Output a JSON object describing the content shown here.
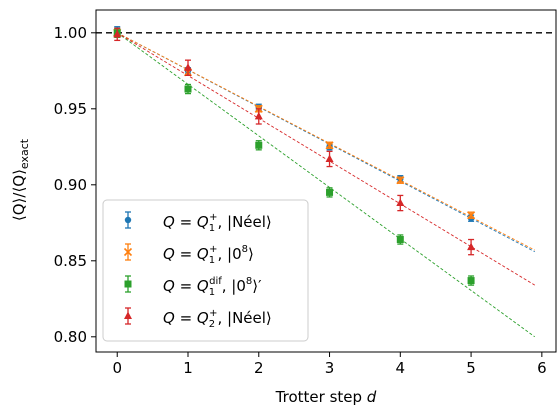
{
  "chart_data": {
    "type": "scatter",
    "xlabel": "Trotter step d",
    "ylabel": "⟨Q⟩/⟨Q⟩exact",
    "xlim": [
      -0.3,
      6.2
    ],
    "ylim": [
      0.79,
      1.015
    ],
    "xticks": [
      0,
      1,
      2,
      3,
      4,
      5,
      6
    ],
    "yticks": [
      0.8,
      0.85,
      0.9,
      0.95,
      1.0
    ],
    "ytick_labels": [
      "0.80",
      "0.85",
      "0.90",
      "0.95",
      "1.00"
    ],
    "reference_line": {
      "y": 1.0,
      "style": "dashed",
      "color": "#000000"
    },
    "legend_position": "lower-left",
    "grid": false,
    "series": [
      {
        "name": "Q = Q1+ , |Néel⟩",
        "color": "#1f77b4",
        "marker": "circle",
        "x": [
          0,
          1,
          2,
          3,
          4,
          5
        ],
        "y": [
          1.001,
          0.975,
          0.951,
          0.925,
          0.904,
          0.878
        ],
        "err": [
          0.003,
          0.002,
          0.002,
          0.002,
          0.002,
          0.002
        ],
        "fit": [
          [
            0,
            1.0
          ],
          [
            5.9,
            0.856
          ]
        ]
      },
      {
        "name": "Q = Q1+ , |0⁸⟩",
        "color": "#ff7f0e",
        "marker": "x",
        "x": [
          0,
          1,
          2,
          3,
          4,
          5
        ],
        "y": [
          1.0,
          0.974,
          0.95,
          0.926,
          0.903,
          0.88
        ],
        "err": [
          0.002,
          0.002,
          0.002,
          0.002,
          0.002,
          0.002
        ],
        "fit": [
          [
            0,
            1.0
          ],
          [
            5.9,
            0.857
          ]
        ]
      },
      {
        "name": "Q = Q1dif, |0⁸⟩′",
        "color": "#2ca02c",
        "marker": "square",
        "x": [
          0,
          1,
          2,
          3,
          4,
          5
        ],
        "y": [
          1.0,
          0.963,
          0.926,
          0.895,
          0.864,
          0.837
        ],
        "err": [
          0.003,
          0.003,
          0.003,
          0.003,
          0.003,
          0.003
        ],
        "fit": [
          [
            0,
            1.0
          ],
          [
            5.9,
            0.8
          ]
        ]
      },
      {
        "name": "Q = Q2+ , |Néel⟩",
        "color": "#d62728",
        "marker": "triangle",
        "x": [
          0,
          1,
          2,
          3,
          4,
          5
        ],
        "y": [
          0.999,
          0.977,
          0.945,
          0.917,
          0.888,
          0.859
        ],
        "err": [
          0.004,
          0.005,
          0.005,
          0.005,
          0.005,
          0.005
        ],
        "fit": [
          [
            0,
            1.0
          ],
          [
            5.9,
            0.834
          ]
        ]
      }
    ]
  },
  "legend": [
    {
      "q": "Q = Q",
      "sub": "1",
      "sup": "+",
      "state": ", |Néel⟩"
    },
    {
      "q": "Q = Q",
      "sub": "1",
      "sup": "+",
      "state": ", |0",
      "state_sup": "8",
      "state_end": "⟩"
    },
    {
      "q": "Q = Q",
      "sub": "1",
      "sup": "dif",
      "state": ", |0",
      "state_sup": "8",
      "state_end": "⟩′"
    },
    {
      "q": "Q = Q",
      "sub": "2",
      "sup": "+",
      "state": ", |Néel⟩"
    }
  ],
  "axis_text": {
    "xlabel_main": "Trotter step ",
    "xlabel_var": "d",
    "ylabel_num": "⟨Q⟩/⟨Q⟩",
    "ylabel_sub": "exact"
  }
}
